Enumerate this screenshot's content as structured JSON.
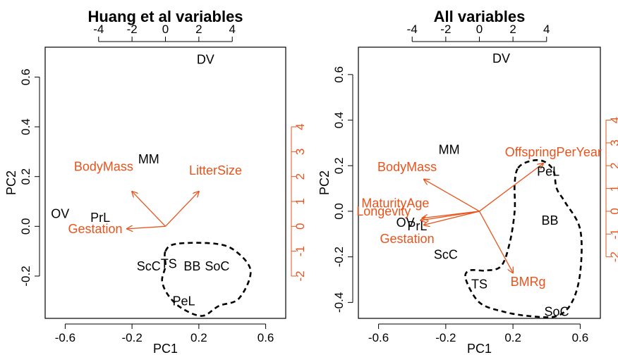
{
  "colors": {
    "variable": "#e8541c",
    "observation": "#000000",
    "hull": "#000000"
  },
  "chart_data": [
    {
      "type": "biplot",
      "title": "Huang et al variables",
      "xlabel": "PC1",
      "ylabel": "PC2",
      "xlim": [
        -0.72,
        0.72
      ],
      "ylim": [
        -0.37,
        0.72
      ],
      "x_ticks": [
        -0.6,
        -0.2,
        0.2,
        0.6
      ],
      "x_tick_labels": [
        "-0.6",
        "-0.2",
        "0.2",
        "0.6"
      ],
      "y_ticks": [
        -0.2,
        0.0,
        0.2,
        0.4,
        0.6
      ],
      "y_tick_labels": [
        "-0.2",
        "0.0",
        "0.2",
        "0.4",
        "0.6"
      ],
      "top_ticks": [
        -4,
        -2,
        0,
        2,
        4
      ],
      "top_tick_labels": [
        "-4",
        "-2",
        "0",
        "2",
        "4"
      ],
      "top_scale": 0.1,
      "right_ticks": [
        -2,
        -1,
        0,
        1,
        2,
        3,
        4
      ],
      "right_tick_labels": [
        "-2",
        "-1",
        "0",
        "1",
        "2",
        "3",
        "4"
      ],
      "right_scale": 0.1,
      "observations": [
        {
          "label": "DV",
          "x": 0.24,
          "y": 0.67
        },
        {
          "label": "MM",
          "x": -0.1,
          "y": 0.27
        },
        {
          "label": "OV",
          "x": -0.63,
          "y": 0.05
        },
        {
          "label": "PrL",
          "x": -0.39,
          "y": 0.035
        },
        {
          "label": "ScC",
          "x": -0.1,
          "y": -0.16
        },
        {
          "label": "TS",
          "x": 0.02,
          "y": -0.15
        },
        {
          "label": "BB",
          "x": 0.16,
          "y": -0.16
        },
        {
          "label": "SoC",
          "x": 0.31,
          "y": -0.16
        },
        {
          "label": "PeL",
          "x": 0.11,
          "y": -0.3
        }
      ],
      "variables": [
        {
          "label": "BodyMass",
          "x": -0.2,
          "y": 0.14,
          "label_x": -0.37,
          "label_y": 0.24
        },
        {
          "label": "LitterSize",
          "x": 0.2,
          "y": 0.14,
          "label_x": 0.3,
          "label_y": 0.225
        },
        {
          "label": "Gestation",
          "x": -0.23,
          "y": -0.01,
          "label_x": -0.42,
          "label_y": -0.01
        }
      ],
      "hull": [
        [
          0.0,
          -0.1
        ],
        [
          0.07,
          -0.07
        ],
        [
          0.3,
          -0.07
        ],
        [
          0.42,
          -0.1
        ],
        [
          0.51,
          -0.18
        ],
        [
          0.44,
          -0.29
        ],
        [
          0.32,
          -0.32
        ],
        [
          0.22,
          -0.36
        ],
        [
          0.1,
          -0.33
        ],
        [
          0.02,
          -0.28
        ],
        [
          -0.02,
          -0.22
        ],
        [
          0.0,
          -0.16
        ]
      ]
    },
    {
      "type": "biplot",
      "title": "All variables",
      "xlabel": "PC1",
      "ylabel": "PC2",
      "xlim": [
        -0.72,
        0.72
      ],
      "ylim": [
        -0.47,
        0.72
      ],
      "x_ticks": [
        -0.6,
        -0.2,
        0.2,
        0.6
      ],
      "x_tick_labels": [
        "-0.6",
        "-0.2",
        "0.2",
        "0.6"
      ],
      "y_ticks": [
        -0.4,
        -0.2,
        0.0,
        0.2,
        0.4,
        0.6
      ],
      "y_tick_labels": [
        "-0.4",
        "-0.2",
        "0.0",
        "0.2",
        "0.4",
        "0.6"
      ],
      "top_ticks": [
        -4,
        -2,
        0,
        2,
        4
      ],
      "top_tick_labels": [
        "-4",
        "-2",
        "0",
        "2",
        "4"
      ],
      "top_scale": 0.1,
      "right_ticks": [
        -2,
        -1,
        0,
        1,
        2,
        3,
        4
      ],
      "right_tick_labels": [
        "-2",
        "-1",
        "0",
        "1",
        "2",
        "3",
        "4"
      ],
      "right_scale": 0.1,
      "observations": [
        {
          "label": "DV",
          "x": 0.13,
          "y": 0.67
        },
        {
          "label": "MM",
          "x": -0.18,
          "y": 0.27
        },
        {
          "label": "PeL",
          "x": 0.41,
          "y": 0.175
        },
        {
          "label": "BB",
          "x": 0.42,
          "y": -0.04
        },
        {
          "label": "OV",
          "x": -0.44,
          "y": -0.05
        },
        {
          "label": "PrL",
          "x": -0.37,
          "y": -0.065
        },
        {
          "label": "ScC",
          "x": -0.2,
          "y": -0.19
        },
        {
          "label": "TS",
          "x": 0.0,
          "y": -0.32
        },
        {
          "label": "BMRg",
          "x": 0.29,
          "y": -0.31
        },
        {
          "label": "SoC",
          "x": 0.46,
          "y": -0.44
        }
      ],
      "variables": [
        {
          "label": "OffspringPerYear",
          "x": 0.38,
          "y": 0.21,
          "label_x": 0.44,
          "label_y": 0.26
        },
        {
          "label": "BodyMass",
          "x": -0.33,
          "y": 0.14,
          "label_x": -0.43,
          "label_y": 0.195
        },
        {
          "label": "MaturityAge",
          "x": -0.34,
          "y": -0.03,
          "label_x": -0.5,
          "label_y": 0.035
        },
        {
          "label": "Longevity",
          "x": -0.35,
          "y": -0.04,
          "label_x": -0.57,
          "label_y": 0.0
        },
        {
          "label": "Gestation",
          "x": -0.33,
          "y": -0.06,
          "label_x": -0.43,
          "label_y": -0.12
        },
        {
          "label": "BMRg",
          "x": 0.2,
          "y": -0.27,
          "label_x": 0.0,
          "label_y": 0.0
        }
      ],
      "hull": [
        [
          0.23,
          0.19
        ],
        [
          0.3,
          0.22
        ],
        [
          0.38,
          0.22
        ],
        [
          0.44,
          0.18
        ],
        [
          0.46,
          0.1
        ],
        [
          0.51,
          0.04
        ],
        [
          0.6,
          -0.08
        ],
        [
          0.6,
          -0.27
        ],
        [
          0.55,
          -0.4
        ],
        [
          0.46,
          -0.46
        ],
        [
          0.3,
          -0.46
        ],
        [
          0.14,
          -0.44
        ],
        [
          0.0,
          -0.4
        ],
        [
          -0.08,
          -0.3
        ],
        [
          -0.06,
          -0.26
        ],
        [
          0.04,
          -0.26
        ],
        [
          0.13,
          -0.24
        ],
        [
          0.18,
          -0.14
        ],
        [
          0.21,
          0.0
        ],
        [
          0.21,
          0.12
        ]
      ]
    }
  ]
}
